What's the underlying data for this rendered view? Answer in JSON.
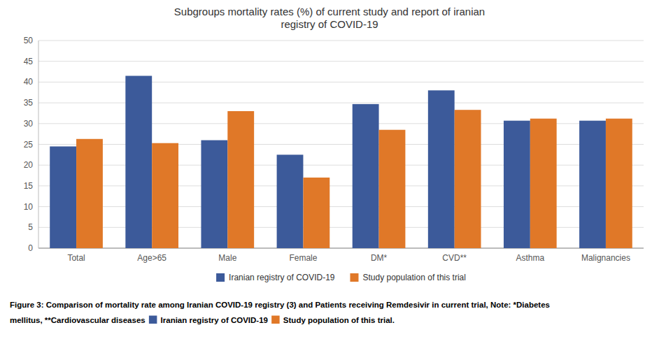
{
  "chart_data": {
    "type": "bar",
    "title": "Subgroups mortality rates (%) of current study and report of iranian\nregistry of COVID-19",
    "categories": [
      "Total",
      "Age>65",
      "Male",
      "Female",
      "DM*",
      "CVD**",
      "Asthma",
      "Malignancies"
    ],
    "series": [
      {
        "name": "Iranian registry of COVID-19",
        "color": "#3c5a9a",
        "values": [
          24.5,
          41.5,
          26.0,
          22.5,
          34.7,
          38.0,
          30.7,
          30.7
        ]
      },
      {
        "name": "Study population of this trial",
        "color": "#e07828",
        "values": [
          26.3,
          25.3,
          33.0,
          17.0,
          28.5,
          33.3,
          31.2,
          31.2
        ]
      }
    ],
    "ylim": [
      0,
      50
    ],
    "yticks": [
      0,
      5,
      10,
      15,
      20,
      25,
      30,
      35,
      40,
      45,
      50
    ],
    "grid": true,
    "legend": "bottom",
    "annotations": [
      "Figure 3: Comparison of mortality rate among Iranian COVID-19 registry (3) and Patients receiving Remdesivir in current trial, Note: *Diabetes",
      "mellitus, **Cardiovascular diseases ",
      " Iranian registry of COVID-19 ",
      " Study population of this trial."
    ]
  }
}
